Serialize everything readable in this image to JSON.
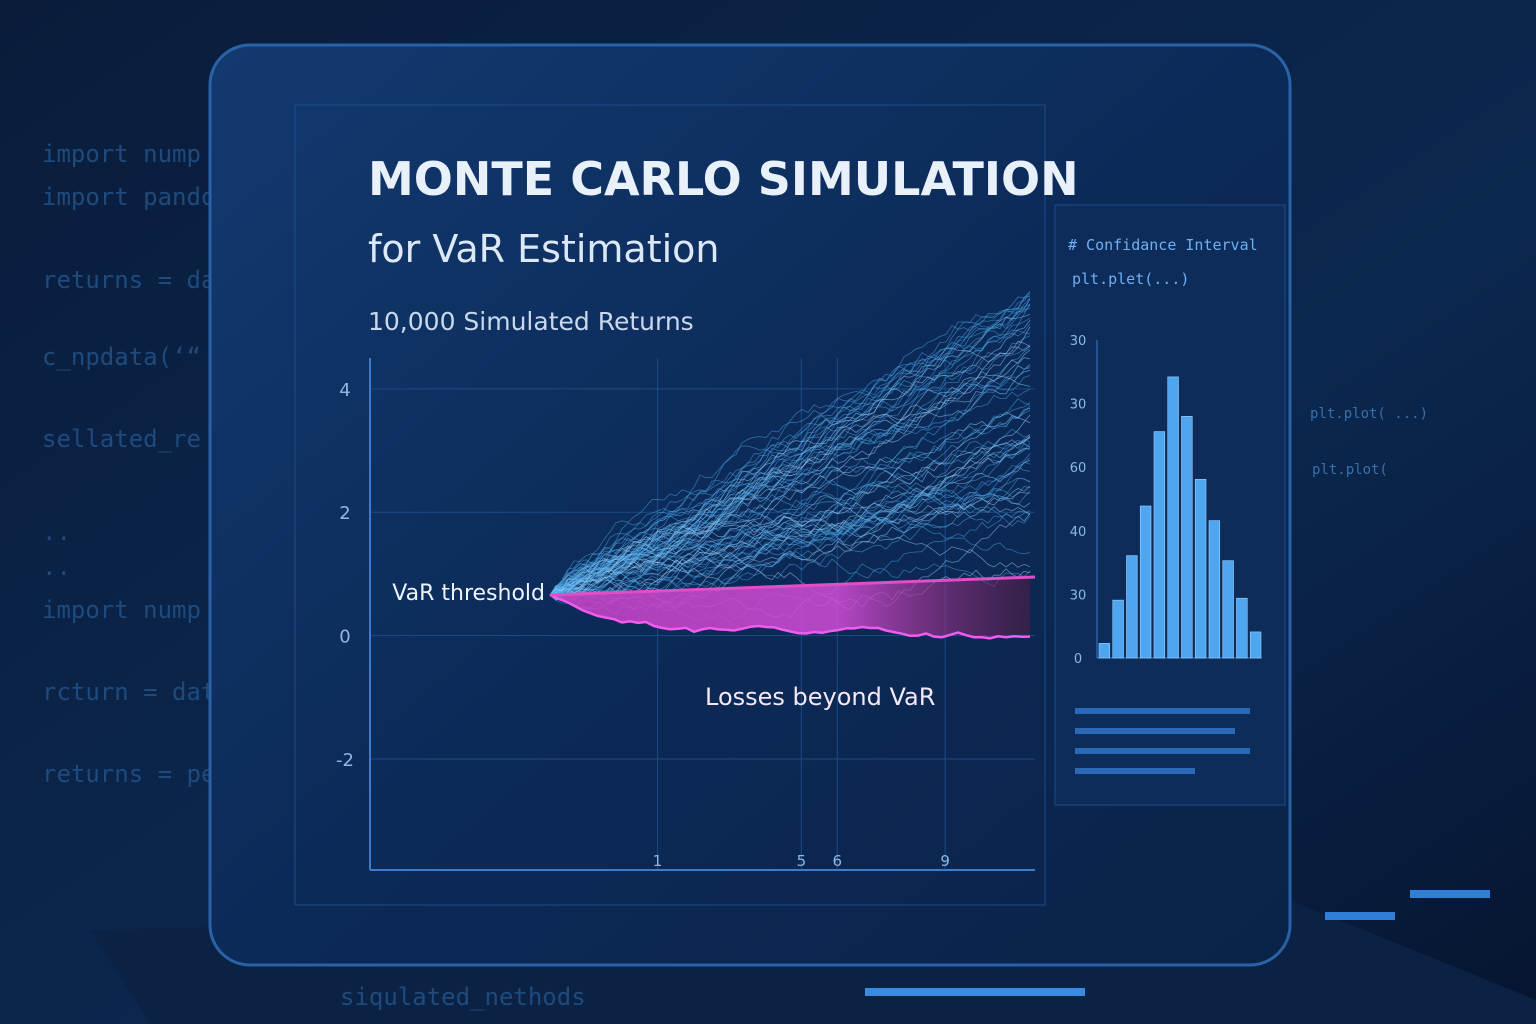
{
  "code_left": [
    "import nump",
    "import pando",
    "returns = da",
    "c_npdata(‘“",
    "sellated_re",
    "..",
    "..",
    "import nump",
    "rcturn = dat",
    "returns = pe"
  ],
  "code_right": [
    "# Confidance Interval",
    "plt.plet(...)"
  ],
  "code_far_right": [
    "plt.plot( ...)",
    "plt.plot("
  ],
  "footer_code": "siqulated_nethods",
  "header": {
    "title": "MONTE CARLO SIMULATION",
    "subtitle": "for VaR Estimation",
    "caption": "10,000 Simulated Returns"
  },
  "main_chart": {
    "ylim": [
      -3.8,
      4.5
    ],
    "yticks": [
      4,
      2,
      0,
      -2
    ],
    "xlim": [
      -7,
      11.5
    ],
    "xticks": [
      1,
      5,
      6,
      9
    ],
    "threshold_label": "VaR threshold",
    "loss_label": "Losses beyond VaR"
  },
  "histogram": {
    "tick_labels": [
      "30",
      "30",
      "60",
      "40",
      "30",
      "0"
    ],
    "ylim": [
      0,
      50
    ],
    "values": [
      2.3,
      9.1,
      16.1,
      23.9,
      35.6,
      44.2,
      38,
      28.1,
      21.6,
      15.3,
      9.4,
      4.1
    ]
  }
}
